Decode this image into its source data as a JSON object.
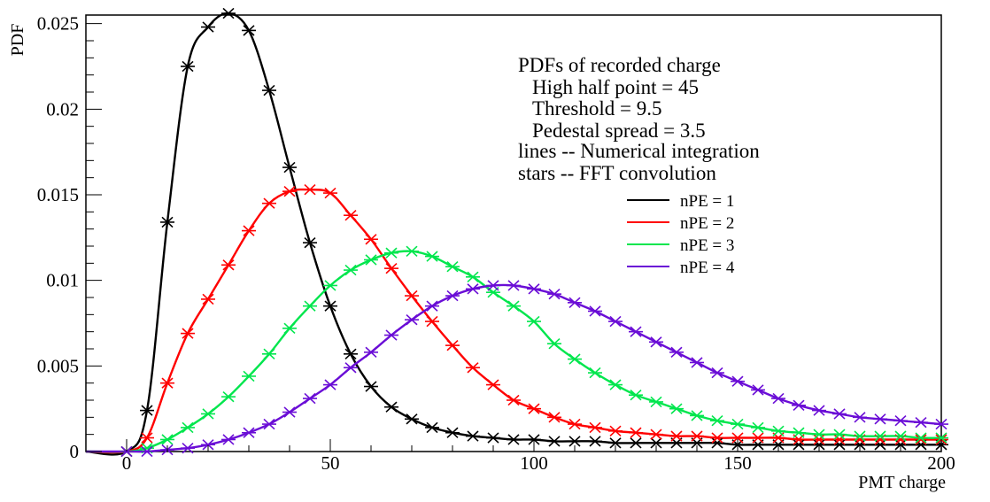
{
  "chart_data": {
    "type": "line",
    "xlabel": "PMT charge",
    "ylabel": "PDF",
    "xlim": [
      -10,
      200
    ],
    "ylim": [
      0,
      0.0255
    ],
    "x_ticks": [
      0,
      50,
      100,
      150,
      200
    ],
    "x_tick_labels": [
      "0",
      "50",
      "100",
      "150",
      "200"
    ],
    "y_ticks": [
      0,
      0.005,
      0.01,
      0.015,
      0.02,
      0.025
    ],
    "y_tick_labels": [
      "0",
      "0.005",
      "0.01",
      "0.015",
      "0.02",
      "0.025"
    ],
    "grid": false,
    "legend_position": "top-right",
    "annotations": [
      "PDFs of recorded charge",
      "High half point = 45",
      "Threshold = 9.5",
      "Pedestal spread = 3.5",
      "lines -- Numerical integration",
      "stars -- FFT convolution"
    ],
    "x": [
      -10,
      0,
      5,
      10,
      15,
      20,
      25,
      30,
      35,
      40,
      45,
      50,
      55,
      60,
      65,
      70,
      75,
      80,
      85,
      90,
      95,
      100,
      105,
      110,
      115,
      120,
      125,
      130,
      135,
      140,
      145,
      150,
      155,
      160,
      165,
      170,
      175,
      180,
      185,
      190,
      195,
      200
    ],
    "series": [
      {
        "name": "nPE = 1",
        "color": "#000000",
        "values": [
          0,
          0,
          0.0024,
          0.0134,
          0.0225,
          0.0248,
          0.0256,
          0.0246,
          0.0211,
          0.0166,
          0.0122,
          0.0085,
          0.0057,
          0.0038,
          0.0026,
          0.0019,
          0.0014,
          0.0011,
          0.0009,
          0.0008,
          0.0007,
          0.0007,
          0.0006,
          0.0006,
          0.0006,
          0.0005,
          0.0005,
          0.0005,
          0.0005,
          0.0005,
          0.0005,
          0.0004,
          0.0004,
          0.0004,
          0.0004,
          0.0004,
          0.0004,
          0.0004,
          0.0004,
          0.0004,
          0.0004,
          0.0004
        ]
      },
      {
        "name": "nPE = 2",
        "color": "#ff0000",
        "values": [
          0,
          0,
          0.0008,
          0.004,
          0.0069,
          0.0089,
          0.0109,
          0.0129,
          0.0145,
          0.0152,
          0.0153,
          0.0151,
          0.0138,
          0.0124,
          0.0107,
          0.0091,
          0.0076,
          0.0062,
          0.0049,
          0.0039,
          0.003,
          0.0025,
          0.002,
          0.0016,
          0.0014,
          0.0012,
          0.0011,
          0.001,
          0.0009,
          0.0009,
          0.0008,
          0.0008,
          0.0008,
          0.0008,
          0.0007,
          0.0007,
          0.0007,
          0.0007,
          0.0007,
          0.0007,
          0.0007,
          0.0007
        ]
      },
      {
        "name": "nPE = 3",
        "color": "#00e64d",
        "values": [
          0,
          0,
          0.0002,
          0.0007,
          0.0014,
          0.0022,
          0.0032,
          0.0044,
          0.0057,
          0.0072,
          0.0085,
          0.0097,
          0.0106,
          0.0112,
          0.0116,
          0.0117,
          0.0114,
          0.0108,
          0.0102,
          0.0093,
          0.0085,
          0.0076,
          0.0063,
          0.0054,
          0.0046,
          0.0039,
          0.0033,
          0.0029,
          0.0025,
          0.0021,
          0.0018,
          0.0016,
          0.0014,
          0.0012,
          0.0011,
          0.001,
          0.001,
          0.0009,
          0.0009,
          0.0009,
          0.0008,
          0.0008
        ]
      },
      {
        "name": "nPE = 4",
        "color": "#6a0dd6",
        "values": [
          0,
          0,
          0,
          0.0001,
          0.0002,
          0.0004,
          0.0007,
          0.0011,
          0.0016,
          0.0023,
          0.0031,
          0.0039,
          0.0049,
          0.0058,
          0.0068,
          0.0077,
          0.0085,
          0.0091,
          0.0095,
          0.0097,
          0.0097,
          0.0095,
          0.0092,
          0.0087,
          0.0082,
          0.0076,
          0.007,
          0.0064,
          0.0058,
          0.0052,
          0.0046,
          0.0041,
          0.0036,
          0.0031,
          0.0027,
          0.0024,
          0.0022,
          0.002,
          0.0019,
          0.0018,
          0.0017,
          0.0016
        ]
      }
    ]
  }
}
